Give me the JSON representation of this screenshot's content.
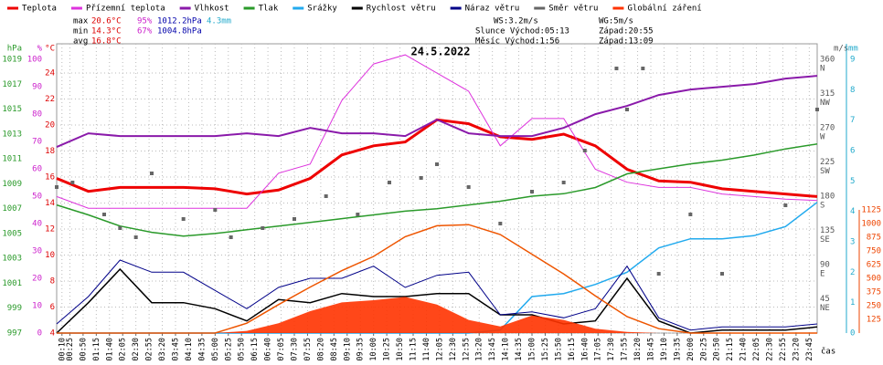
{
  "chart_data": {
    "type": "line",
    "title": "24.5.2022",
    "xlim": [
      0,
      1440
    ],
    "x_unit": "čas",
    "xticks": [
      {
        "value": 10,
        "label": "00:10"
      },
      {
        "value": 25,
        "label": "00:25"
      },
      {
        "value": 50,
        "label": "00:50"
      },
      {
        "value": 75,
        "label": "01:15"
      },
      {
        "value": 100,
        "label": "01:40"
      },
      {
        "value": 125,
        "label": "02:05"
      },
      {
        "value": 150,
        "label": "02:30"
      },
      {
        "value": 175,
        "label": "02:55"
      },
      {
        "value": 200,
        "label": "03:20"
      },
      {
        "value": 225,
        "label": "03:45"
      },
      {
        "value": 250,
        "label": "04:10"
      },
      {
        "value": 275,
        "label": "04:35"
      },
      {
        "value": 300,
        "label": "05:00"
      },
      {
        "value": 325,
        "label": "05:25"
      },
      {
        "value": 350,
        "label": "05:50"
      },
      {
        "value": 375,
        "label": "06:15"
      },
      {
        "value": 400,
        "label": "06:40"
      },
      {
        "value": 425,
        "label": "07:05"
      },
      {
        "value": 450,
        "label": "07:30"
      },
      {
        "value": 475,
        "label": "07:55"
      },
      {
        "value": 500,
        "label": "08:20"
      },
      {
        "value": 525,
        "label": "08:45"
      },
      {
        "value": 550,
        "label": "09:10"
      },
      {
        "value": 575,
        "label": "09:35"
      },
      {
        "value": 600,
        "label": "10:00"
      },
      {
        "value": 625,
        "label": "10:25"
      },
      {
        "value": 650,
        "label": "10:50"
      },
      {
        "value": 675,
        "label": "11:15"
      },
      {
        "value": 700,
        "label": "11:40"
      },
      {
        "value": 725,
        "label": "12:05"
      },
      {
        "value": 750,
        "label": "12:30"
      },
      {
        "value": 775,
        "label": "12:55"
      },
      {
        "value": 800,
        "label": "13:20"
      },
      {
        "value": 825,
        "label": "13:45"
      },
      {
        "value": 850,
        "label": "14:10"
      },
      {
        "value": 875,
        "label": "14:35"
      },
      {
        "value": 900,
        "label": "15:00"
      },
      {
        "value": 925,
        "label": "15:25"
      },
      {
        "value": 950,
        "label": "15:50"
      },
      {
        "value": 975,
        "label": "16:15"
      },
      {
        "value": 1000,
        "label": "16:40"
      },
      {
        "value": 1025,
        "label": "17:05"
      },
      {
        "value": 1050,
        "label": "17:30"
      },
      {
        "value": 1075,
        "label": "17:55"
      },
      {
        "value": 1100,
        "label": "18:20"
      },
      {
        "value": 1125,
        "label": "18:45"
      },
      {
        "value": 1150,
        "label": "19:10"
      },
      {
        "value": 1175,
        "label": "19:35"
      },
      {
        "value": 1200,
        "label": "20:00"
      },
      {
        "value": 1225,
        "label": "20:25"
      },
      {
        "value": 1250,
        "label": "20:50"
      },
      {
        "value": 1275,
        "label": "21:15"
      },
      {
        "value": 1300,
        "label": "21:40"
      },
      {
        "value": 1325,
        "label": "22:05"
      },
      {
        "value": 1350,
        "label": "22:30"
      },
      {
        "value": 1375,
        "label": "22:55"
      },
      {
        "value": 1400,
        "label": "23:20"
      },
      {
        "value": 1425,
        "label": "23:45"
      }
    ],
    "axes": {
      "press": {
        "unit": "hPa",
        "color": "#2a9a2a",
        "lim": [
          997,
          1020.25
        ],
        "ticks": [
          997,
          999,
          1001,
          1003,
          1005,
          1007,
          1009,
          1011,
          1013,
          1015,
          1017,
          1019
        ]
      },
      "hum": {
        "unit": "%",
        "color": "#cc22cc",
        "lim": [
          0,
          105.7
        ],
        "ticks": [
          0,
          10,
          20,
          30,
          40,
          50,
          60,
          70,
          80,
          90,
          100
        ]
      },
      "temp": {
        "unit": "°C",
        "color": "#dd0000",
        "lim": [
          4,
          26.25
        ],
        "ticks": [
          4,
          6,
          8,
          10,
          12,
          14,
          16,
          18,
          20,
          22,
          24
        ]
      },
      "dir": {
        "unit": "m/s",
        "color": "#555555",
        "lim": [
          0,
          380.4
        ],
        "ticks": [
          45,
          90,
          135,
          180,
          225,
          270,
          315,
          360
        ],
        "compass": [
          "NE",
          "E",
          "SE",
          "S",
          "SW",
          "W",
          "NW",
          "N"
        ]
      },
      "wind": {
        "unit": "mm",
        "color": "#22aacc",
        "lim": [
          0,
          9.51
        ],
        "ticks": [
          0,
          1,
          2,
          3,
          4,
          5,
          6,
          7,
          8,
          9
        ]
      },
      "rad": {
        "color": "#ee4400",
        "lim": [
          0,
          2642
        ],
        "ticks": [
          125,
          250,
          375,
          500,
          625,
          750,
          875,
          1000,
          1125
        ]
      }
    },
    "x": [
      0,
      60,
      120,
      180,
      240,
      300,
      360,
      420,
      480,
      540,
      600,
      660,
      720,
      780,
      840,
      900,
      960,
      1020,
      1080,
      1140,
      1200,
      1260,
      1320,
      1380,
      1440
    ],
    "series": [
      {
        "name": "Teplota",
        "color": "#ee0000",
        "axis": "temp",
        "width": 3,
        "values": [
          15.9,
          14.9,
          15.2,
          15.2,
          15.2,
          15.1,
          14.7,
          15.0,
          15.9,
          17.7,
          18.4,
          18.7,
          20.4,
          20.1,
          19.1,
          18.9,
          19.3,
          18.4,
          16.6,
          15.7,
          15.6,
          15.1,
          14.9,
          14.7,
          14.5
        ]
      },
      {
        "name": "Přízemní teplota",
        "color": "#dd33dd",
        "axis": "temp",
        "width": 1,
        "values": [
          14.5,
          13.6,
          13.6,
          13.6,
          13.6,
          13.6,
          13.6,
          16.3,
          17.0,
          21.9,
          24.7,
          25.4,
          24.0,
          22.6,
          18.4,
          20.5,
          20.5,
          16.6,
          15.6,
          15.2,
          15.2,
          14.7,
          14.5,
          14.3,
          14.2
        ]
      },
      {
        "name": "Vlhkost",
        "color": "#8a1aaa",
        "axis": "hum",
        "width": 2,
        "values": [
          68,
          73,
          72,
          72,
          72,
          72,
          73,
          72,
          75,
          73,
          73,
          72,
          78,
          73,
          72,
          72,
          75,
          80,
          83,
          87,
          89,
          90,
          91,
          93,
          94
        ]
      },
      {
        "name": "Tlak",
        "color": "#2a9a2a",
        "axis": "press",
        "width": 1.5,
        "values": [
          1007.3,
          1006.5,
          1005.6,
          1005.1,
          1004.8,
          1005.0,
          1005.3,
          1005.6,
          1005.9,
          1006.2,
          1006.5,
          1006.8,
          1007.0,
          1007.3,
          1007.6,
          1008.0,
          1008.2,
          1008.7,
          1009.8,
          1010.2,
          1010.6,
          1010.9,
          1011.3,
          1011.8,
          1012.2
        ]
      },
      {
        "name": "Srážky",
        "color": "#22aaee",
        "axis": "wind",
        "width": 1.5,
        "values": [
          0,
          0,
          0,
          0,
          0,
          0,
          0,
          0,
          0,
          0,
          0,
          0,
          0,
          0,
          0.1,
          1.2,
          1.3,
          1.6,
          2.0,
          2.8,
          3.1,
          3.1,
          3.2,
          3.5,
          4.3
        ]
      },
      {
        "name": "Rychlost větru",
        "color": "#000000",
        "axis": "wind",
        "width": 1.5,
        "values": [
          0,
          1.0,
          2.1,
          1.0,
          1.0,
          0.8,
          0.4,
          1.1,
          1.0,
          1.3,
          1.2,
          1.2,
          1.3,
          1.3,
          0.6,
          0.6,
          0.3,
          0.4,
          1.8,
          0.4,
          0,
          0.1,
          0.1,
          0.1,
          0.2
        ]
      },
      {
        "name": "Náraz větru",
        "color": "#000088",
        "axis": "wind",
        "width": 1,
        "values": [
          0.3,
          1.2,
          2.4,
          2.0,
          2.0,
          1.4,
          0.8,
          1.5,
          1.8,
          1.8,
          2.2,
          1.5,
          1.9,
          2.0,
          0.6,
          0.7,
          0.5,
          0.8,
          2.2,
          0.5,
          0.1,
          0.2,
          0.2,
          0.2,
          0.3
        ]
      },
      {
        "name": "Směr větru",
        "color": "#666666",
        "axis": "dir",
        "kind": "scatter",
        "x": [
          0,
          30,
          90,
          120,
          150,
          180,
          240,
          300,
          330,
          390,
          450,
          510,
          570,
          630,
          690,
          720,
          780,
          840,
          900,
          960,
          1000,
          1060,
          1080,
          1110,
          1140,
          1200,
          1260,
          1380,
          1440
        ],
        "values": [
          192,
          198,
          156,
          138,
          126,
          210,
          150,
          162,
          126,
          138,
          150,
          180,
          156,
          198,
          204,
          222,
          192,
          144,
          186,
          198,
          240,
          348,
          294,
          348,
          78,
          156,
          78,
          168,
          294
        ]
      },
      {
        "name": "Globální záření",
        "color": "#ff3300",
        "axis": "rad",
        "kind": "area",
        "values": [
          0,
          0,
          0,
          0,
          0,
          0,
          20,
          90,
          200,
          280,
          300,
          330,
          260,
          120,
          60,
          160,
          120,
          40,
          10,
          0,
          0,
          0,
          0,
          0,
          0
        ]
      },
      {
        "color": "#ee5500",
        "axis": "rad",
        "width": 1.5,
        "values": [
          0,
          0,
          0,
          0,
          0,
          0,
          90,
          260,
          420,
          570,
          700,
          880,
          980,
          990,
          900,
          720,
          540,
          340,
          150,
          40,
          0,
          0,
          0,
          0,
          0
        ]
      }
    ],
    "stats": [
      {
        "label": "max",
        "temp": "20.6°C",
        "hum": "95%",
        "press": "1012.2hPa",
        "rain": "4.3mm"
      },
      {
        "label": "min",
        "temp": "14.3°C",
        "hum": "67%",
        "press": "1004.8hPa"
      },
      {
        "label": "avg",
        "temp": "16.8°C"
      }
    ],
    "info": [
      "WS:3.2m/s",
      "WG:5m/s",
      "Slunce Východ:05:13",
      "Západ:20:55",
      "Měsíc Východ:1:56",
      "Západ:13:09"
    ],
    "grid": true
  }
}
